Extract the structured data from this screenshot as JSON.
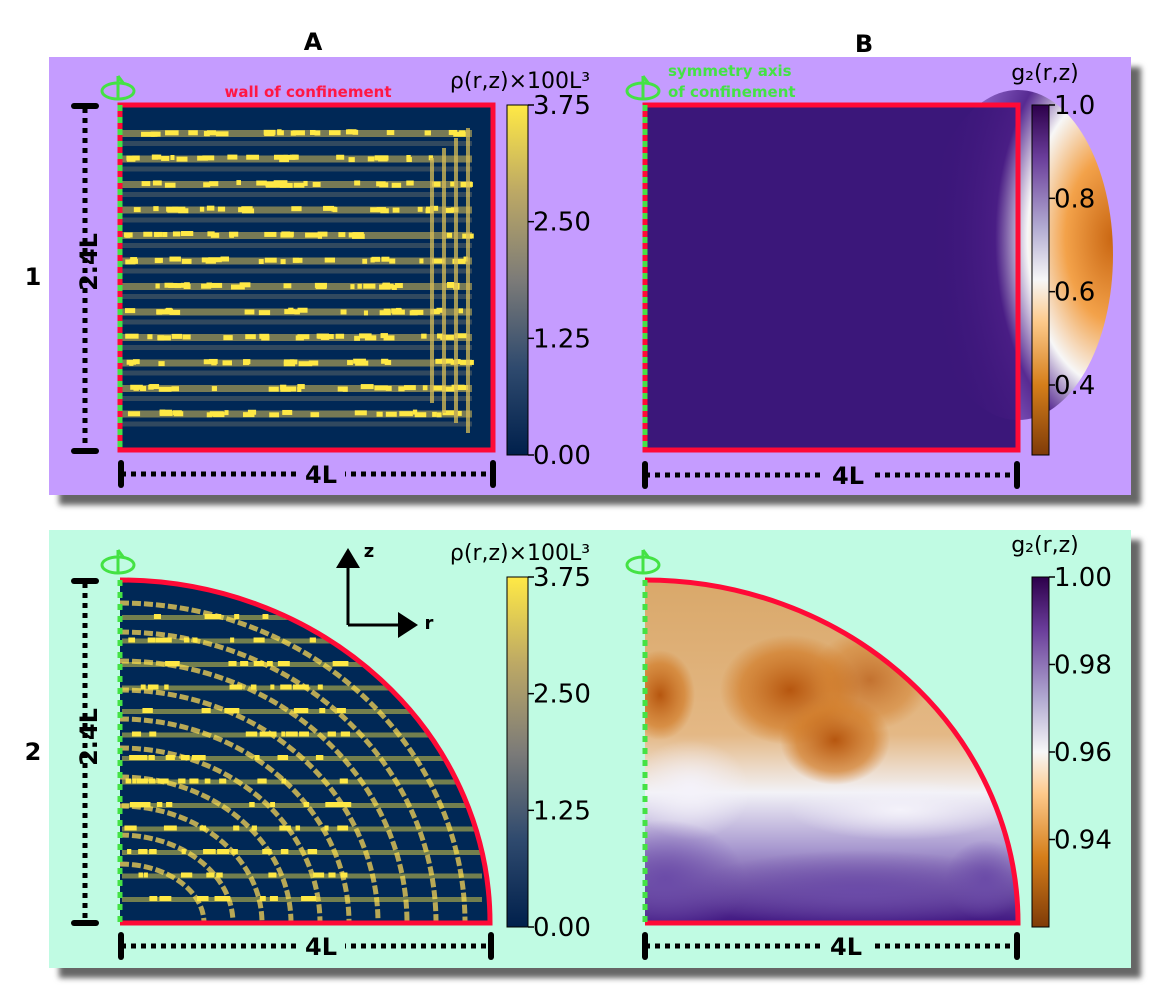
{
  "columns": {
    "a": "A",
    "b": "B"
  },
  "rows": {
    "r1": "1",
    "r2": "2"
  },
  "panel_colors": {
    "row1_bg": "#c59cff",
    "row2_bg": "#c0fbe3",
    "plot_bg": "#002856",
    "wall": "#ff0a37",
    "axis_line": "#44e244"
  },
  "annotations": {
    "wall": "wall of confinement",
    "symmetry_line1": "symmetry axis",
    "symmetry_line2": "of confinement",
    "height": "2.4L",
    "width": "4L",
    "axis_z": "z",
    "axis_r": "r"
  },
  "chart_data": [
    {
      "id": "1A",
      "type": "heatmap",
      "shape": "rectangle",
      "colormap": "cividis",
      "colorbar_label": "ρ(r,z)×100L³",
      "clim": [
        0,
        3.75
      ],
      "ticks": [
        "3.75",
        "2.50",
        "1.25",
        "0.00"
      ],
      "tick_values": [
        3.75,
        2.5,
        1.25,
        0.0
      ]
    },
    {
      "id": "1B",
      "type": "heatmap",
      "shape": "rectangle",
      "colormap": "PuOr",
      "colorbar_label": "g₂(r,z)",
      "clim": [
        0.25,
        1.0
      ],
      "ticks": [
        "1.0",
        "0.8",
        "0.6",
        "0.4"
      ],
      "tick_values": [
        1.0,
        0.8,
        0.6,
        0.4
      ]
    },
    {
      "id": "2A",
      "type": "heatmap",
      "shape": "quarter-ellipse",
      "colormap": "cividis",
      "colorbar_label": "ρ(r,z)×100L³",
      "clim": [
        0,
        3.75
      ],
      "ticks": [
        "3.75",
        "2.50",
        "1.25",
        "0.00"
      ],
      "tick_values": [
        3.75,
        2.5,
        1.25,
        0.0
      ]
    },
    {
      "id": "2B",
      "type": "heatmap",
      "shape": "quarter-ellipse",
      "colormap": "PuOr",
      "colorbar_label": "g₂(r,z)",
      "clim": [
        0.92,
        1.0
      ],
      "ticks": [
        "1.00",
        "0.98",
        "0.96",
        "0.94"
      ],
      "tick_values": [
        1.0,
        0.98,
        0.96,
        0.94
      ]
    }
  ]
}
